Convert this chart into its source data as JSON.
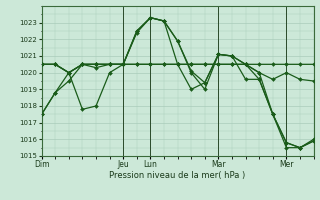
{
  "background_color": "#cce8d8",
  "grid_color": "#aaccbb",
  "line_color": "#1a5c1a",
  "marker_color": "#1a5c1a",
  "xlabel": "Pression niveau de la mer( hPa )",
  "ylim": [
    1015,
    1024
  ],
  "yticks": [
    1015,
    1016,
    1017,
    1018,
    1019,
    1020,
    1021,
    1022,
    1023
  ],
  "day_labels": [
    "Dim",
    "Jeu",
    "Lun",
    "Mar",
    "Mer"
  ],
  "day_positions": [
    0,
    6,
    8,
    13,
    18
  ],
  "xlim": [
    0,
    20
  ],
  "series": [
    {
      "x": [
        0,
        1,
        2,
        3,
        4,
        5,
        6,
        7,
        8,
        9,
        10,
        11,
        12,
        13,
        14,
        15,
        16,
        17,
        18,
        19,
        20
      ],
      "y": [
        1017.5,
        1018.8,
        1019.5,
        1020.5,
        1020.5,
        1020.5,
        1020.5,
        1020.5,
        1020.5,
        1020.5,
        1020.5,
        1020.5,
        1020.5,
        1020.5,
        1020.5,
        1020.5,
        1020.5,
        1020.5,
        1020.5,
        1020.5,
        1020.5
      ]
    },
    {
      "x": [
        0,
        1,
        2,
        3,
        4,
        5,
        6,
        7,
        8,
        9,
        10,
        11,
        12,
        13,
        14,
        15,
        16,
        17,
        18,
        19,
        20
      ],
      "y": [
        1020.5,
        1020.5,
        1020.0,
        1020.5,
        1020.5,
        1020.5,
        1020.5,
        1022.5,
        1023.3,
        1023.1,
        1021.9,
        1020.0,
        1019.0,
        1021.1,
        1021.0,
        1020.5,
        1020.0,
        1019.6,
        1020.0,
        1019.6,
        1019.5
      ]
    },
    {
      "x": [
        0,
        1,
        2,
        3,
        4,
        5,
        6,
        7,
        8,
        9,
        10,
        11,
        12,
        13,
        14,
        15,
        16,
        17,
        18,
        19,
        20
      ],
      "y": [
        1020.5,
        1020.5,
        1020.0,
        1020.5,
        1020.5,
        1020.5,
        1020.5,
        1022.5,
        1023.3,
        1023.1,
        1021.9,
        1020.1,
        1019.4,
        1021.1,
        1021.0,
        1020.5,
        1019.6,
        1017.5,
        1015.8,
        1015.5,
        1016.0
      ]
    },
    {
      "x": [
        0,
        1,
        2,
        3,
        4,
        5,
        6,
        7,
        8,
        9,
        10,
        11,
        12,
        13,
        14,
        15,
        16,
        17,
        18,
        19,
        20
      ],
      "y": [
        1020.5,
        1020.5,
        1020.0,
        1020.5,
        1020.3,
        1020.5,
        1020.5,
        1020.5,
        1020.5,
        1020.5,
        1020.5,
        1020.5,
        1020.5,
        1020.5,
        1020.5,
        1020.5,
        1020.0,
        1017.5,
        1015.8,
        1015.5,
        1015.9
      ]
    },
    {
      "x": [
        0,
        1,
        2,
        3,
        4,
        5,
        6,
        7,
        8,
        9,
        10,
        11,
        12,
        13,
        14,
        15,
        16,
        17,
        18,
        19,
        20
      ],
      "y": [
        1017.5,
        1018.8,
        1020.0,
        1017.8,
        1018.0,
        1020.0,
        1020.5,
        1022.4,
        1023.3,
        1023.1,
        1020.5,
        1019.0,
        1019.4,
        1021.1,
        1021.0,
        1019.6,
        1019.6,
        1017.5,
        1015.5,
        1015.5,
        1015.9
      ]
    }
  ],
  "vlines": [
    0,
    6,
    8,
    13,
    18
  ]
}
